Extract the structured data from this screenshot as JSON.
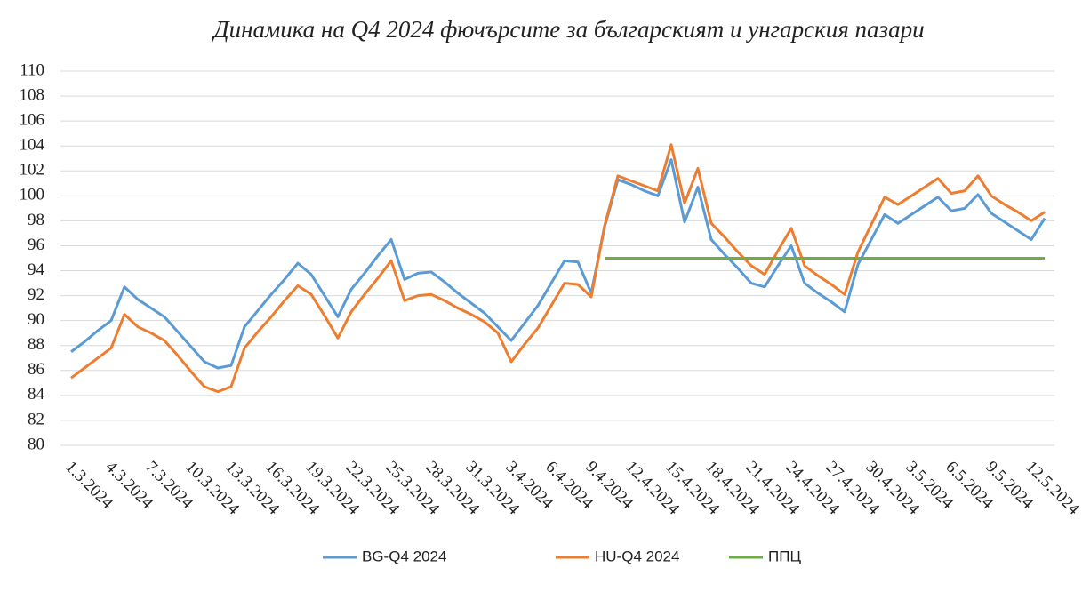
{
  "chart_data": {
    "type": "line",
    "title": "Динамика на Q4 2024 фючърсите за българският и унгарския пазари",
    "categories": [
      "1.3.2024",
      null,
      null,
      "4.3.2024",
      null,
      null,
      "7.3.2024",
      null,
      null,
      "10.3.2024",
      null,
      null,
      "13.3.2024",
      null,
      null,
      "16.3.2024",
      null,
      null,
      "19.3.2024",
      null,
      null,
      "22.3.2024",
      null,
      null,
      "25.3.2024",
      null,
      null,
      "28.3.2024",
      null,
      null,
      "31.3.2024",
      null,
      null,
      "3.4.2024",
      null,
      null,
      "6.4.2024",
      null,
      null,
      "9.4.2024",
      null,
      null,
      "12.4.2024",
      null,
      null,
      "15.4.2024",
      null,
      null,
      "18.4.2024",
      null,
      null,
      "21.4.2024",
      null,
      null,
      "24.4.2024",
      null,
      null,
      "27.4.2024",
      null,
      null,
      "30.4.2024",
      null,
      null,
      "3.5.2024",
      null,
      null,
      "6.5.2024",
      null,
      null,
      "9.5.2024",
      null,
      null,
      "12.5.2024",
      null
    ],
    "series": [
      {
        "name": "BG-Q4 2024",
        "color": "#5b9bd5",
        "values": [
          87.5,
          88.3,
          89.2,
          90,
          92.7,
          91.7,
          91,
          90.3,
          89.1,
          87.9,
          86.7,
          86.2,
          86.4,
          89.5,
          90.8,
          92.1,
          93.3,
          94.6,
          93.7,
          92,
          90.3,
          92.5,
          93.8,
          95.2,
          96.5,
          93.3,
          93.8,
          93.9,
          93.1,
          92.2,
          91.4,
          90.6,
          89.5,
          88.4,
          89.8,
          91.2,
          93,
          94.8,
          94.7,
          92.2,
          97.5,
          101.3,
          100.9,
          100.4,
          100,
          102.9,
          97.9,
          100.7,
          96.5,
          95.3,
          94.2,
          93,
          92.7,
          94.4,
          96,
          93,
          92.2,
          91.5,
          90.7,
          94.5,
          96.5,
          98.5,
          97.8,
          98.5,
          99.2,
          99.9,
          98.8,
          99,
          100.1,
          98.6,
          97.9,
          97.2,
          96.5,
          98.2
        ]
      },
      {
        "name": "HU-Q4 2024",
        "color": "#ed7d31",
        "values": [
          85.4,
          86.2,
          87,
          87.8,
          90.5,
          89.5,
          89,
          88.4,
          87.2,
          85.9,
          84.7,
          84.3,
          84.7,
          87.8,
          89.1,
          90.3,
          91.6,
          92.8,
          92.1,
          90.4,
          88.6,
          90.7,
          92.1,
          93.4,
          94.8,
          91.6,
          92,
          92.1,
          91.6,
          91,
          90.5,
          89.9,
          89,
          86.7,
          88.1,
          89.4,
          91.2,
          93,
          92.9,
          91.9,
          97.6,
          101.6,
          101.2,
          100.8,
          100.4,
          104.1,
          99.4,
          102.2,
          97.8,
          96.7,
          95.5,
          94.4,
          93.7,
          95.6,
          97.4,
          94.4,
          93.6,
          92.9,
          92.1,
          95.5,
          97.7,
          99.9,
          99.3,
          100,
          100.7,
          101.4,
          100.2,
          100.4,
          101.6,
          100,
          99.3,
          98.7,
          98,
          98.7
        ]
      },
      {
        "name": "ППЦ",
        "color": "#70ad47",
        "values": [
          null,
          null,
          null,
          null,
          null,
          null,
          null,
          null,
          null,
          null,
          null,
          null,
          null,
          null,
          null,
          null,
          null,
          null,
          null,
          null,
          null,
          null,
          null,
          null,
          null,
          null,
          null,
          null,
          null,
          null,
          null,
          null,
          null,
          null,
          null,
          null,
          null,
          null,
          null,
          null,
          95,
          95,
          95,
          95,
          95,
          95,
          95,
          95,
          95,
          95,
          95,
          95,
          95,
          95,
          95,
          95,
          95,
          95,
          95,
          95,
          95,
          95,
          95,
          95,
          95,
          95,
          95,
          95,
          95,
          95,
          95,
          95,
          95,
          95
        ]
      }
    ],
    "ylim": [
      80,
      110
    ],
    "yticks": [
      80,
      82,
      84,
      86,
      88,
      90,
      92,
      94,
      96,
      98,
      100,
      102,
      104,
      106,
      108,
      110
    ],
    "grid": true
  }
}
